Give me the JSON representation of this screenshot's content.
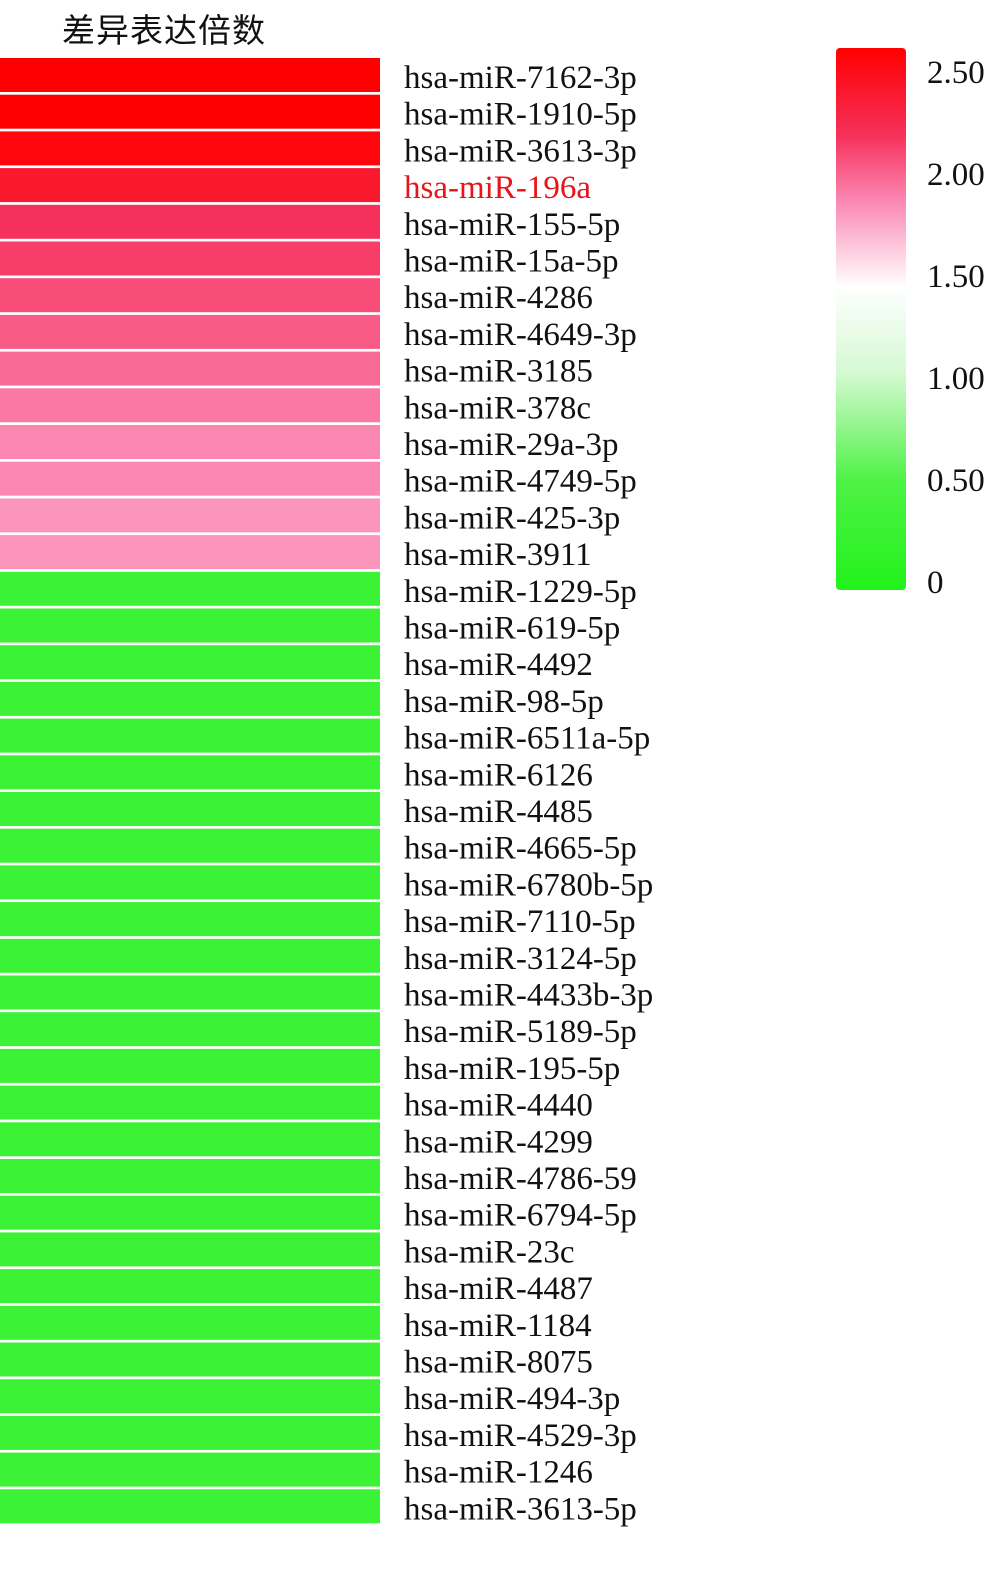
{
  "chart_data": {
    "type": "heatmap",
    "title": "差异表达倍数",
    "highlight_label": "hsa-miR-196a",
    "highlight_color": "#e8131b",
    "rows": [
      {
        "label": "hsa-miR-7162-3p",
        "value": 2.5
      },
      {
        "label": "hsa-miR-1910-5p",
        "value": 2.5
      },
      {
        "label": "hsa-miR-3613-3p",
        "value": 2.45
      },
      {
        "label": "hsa-miR-196a",
        "value": 2.3
      },
      {
        "label": "hsa-miR-155-5p",
        "value": 2.1
      },
      {
        "label": "hsa-miR-15a-5p",
        "value": 2.05
      },
      {
        "label": "hsa-miR-4286",
        "value": 2.0
      },
      {
        "label": "hsa-miR-4649-3p",
        "value": 1.95
      },
      {
        "label": "hsa-miR-3185",
        "value": 1.9
      },
      {
        "label": "hsa-miR-378c",
        "value": 1.85
      },
      {
        "label": "hsa-miR-29a-3p",
        "value": 1.8
      },
      {
        "label": "hsa-miR-4749-5p",
        "value": 1.8
      },
      {
        "label": "hsa-miR-425-3p",
        "value": 1.75
      },
      {
        "label": "hsa-miR-3911",
        "value": 1.75
      },
      {
        "label": "hsa-miR-1229-5p",
        "value": 0.3
      },
      {
        "label": "hsa-miR-619-5p",
        "value": 0.3
      },
      {
        "label": "hsa-miR-4492",
        "value": 0.3
      },
      {
        "label": "hsa-miR-98-5p",
        "value": 0.3
      },
      {
        "label": "hsa-miR-6511a-5p",
        "value": 0.3
      },
      {
        "label": "hsa-miR-6126",
        "value": 0.3
      },
      {
        "label": "hsa-miR-4485",
        "value": 0.3
      },
      {
        "label": "hsa-miR-4665-5p",
        "value": 0.3
      },
      {
        "label": "hsa-miR-6780b-5p",
        "value": 0.3
      },
      {
        "label": "hsa-miR-7110-5p",
        "value": 0.3
      },
      {
        "label": "hsa-miR-3124-5p",
        "value": 0.3
      },
      {
        "label": "hsa-miR-4433b-3p",
        "value": 0.3
      },
      {
        "label": "hsa-miR-5189-5p",
        "value": 0.3
      },
      {
        "label": "hsa-miR-195-5p",
        "value": 0.3
      },
      {
        "label": "hsa-miR-4440",
        "value": 0.3
      },
      {
        "label": "hsa-miR-4299",
        "value": 0.3
      },
      {
        "label": "hsa-miR-4786-59",
        "value": 0.3
      },
      {
        "label": "hsa-miR-6794-5p",
        "value": 0.3
      },
      {
        "label": "hsa-miR-23c",
        "value": 0.3
      },
      {
        "label": "hsa-miR-4487",
        "value": 0.3
      },
      {
        "label": "hsa-miR-1184",
        "value": 0.3
      },
      {
        "label": "hsa-miR-8075",
        "value": 0.3
      },
      {
        "label": "hsa-miR-494-3p",
        "value": 0.3
      },
      {
        "label": "hsa-miR-4529-3p",
        "value": 0.3
      },
      {
        "label": "hsa-miR-1246",
        "value": 0.3
      },
      {
        "label": "hsa-miR-3613-5p",
        "value": 0.3
      }
    ],
    "colorbar": {
      "min": 0,
      "max": 2.5,
      "ticks": [
        "0",
        "0.50",
        "1.00",
        "1.50",
        "2.00",
        "2.50"
      ],
      "stops": [
        {
          "value": 0,
          "color": "#22f21a"
        },
        {
          "value": 0.5,
          "color": "#4ef245"
        },
        {
          "value": 1.0,
          "color": "#d5f9d2"
        },
        {
          "value": 1.4,
          "color": "#ffffff"
        },
        {
          "value": 1.8,
          "color": "#fb86b2"
        },
        {
          "value": 2.1,
          "color": "#f5305a"
        },
        {
          "value": 2.5,
          "color": "#ff0000"
        }
      ]
    }
  }
}
